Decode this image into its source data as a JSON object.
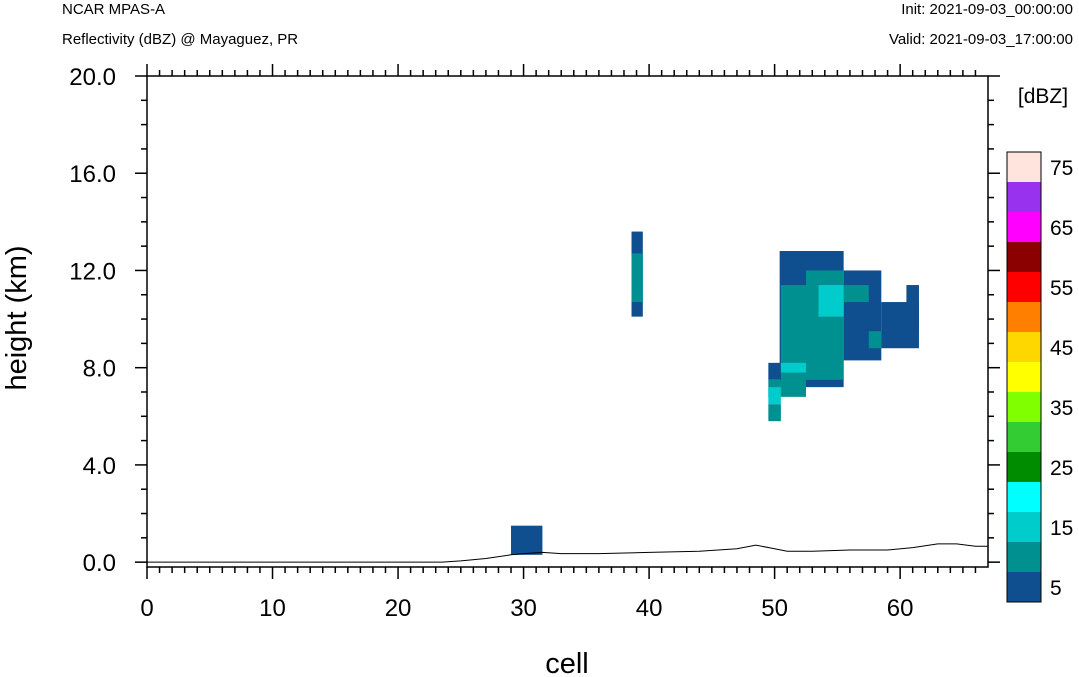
{
  "header": {
    "model": "NCAR MPAS-A",
    "field": "Reflectivity (dBZ) @ Mayaguez, PR",
    "init": "Init: 2021-09-03_00:00:00",
    "valid": "Valid: 2021-09-03_17:00:00"
  },
  "chart_data": {
    "type": "heatmap",
    "title": "Reflectivity (dBZ) @ Mayaguez, PR",
    "xlabel": "cell",
    "ylabel": "height (km)",
    "xlim": [
      0,
      67
    ],
    "ylim": [
      -0.2,
      20.0
    ],
    "xticks": [
      0,
      10,
      20,
      30,
      40,
      50,
      60
    ],
    "xtick_labels": [
      "0",
      "10",
      "20",
      "30",
      "40",
      "50",
      "60"
    ],
    "yticks": [
      0.0,
      4.0,
      8.0,
      12.0,
      16.0,
      20.0
    ],
    "ytick_labels": [
      "0.0",
      "4.0",
      "8.0",
      "12.0",
      "16.0",
      "20.0"
    ],
    "colorbar": {
      "unit_label": "[dBZ]",
      "levels": [
        5,
        10,
        15,
        20,
        25,
        30,
        35,
        40,
        45,
        50,
        55,
        60,
        65,
        70,
        75
      ],
      "colors": [
        "#0f4f8f",
        "#009090",
        "#00cccc",
        "#00ffff",
        "#008c00",
        "#33cc33",
        "#80ff00",
        "#ffff00",
        "#ffd700",
        "#ff8000",
        "#ff0000",
        "#8b0000",
        "#ff00ff",
        "#9932ee",
        "#ffe4de"
      ],
      "tick_labels": [
        "5",
        "15",
        "25",
        "35",
        "45",
        "55",
        "65",
        "75"
      ]
    },
    "cells": [
      {
        "x0": 29,
        "x1": 31.5,
        "y0": 0.3,
        "y1": 1.5,
        "dbz": 5
      },
      {
        "x0": 38.6,
        "x1": 39.5,
        "y0": 10.1,
        "y1": 13.6,
        "dbz": 5
      },
      {
        "x0": 38.6,
        "x1": 39.5,
        "y0": 10.7,
        "y1": 12.7,
        "dbz": 10
      },
      {
        "x0": 50.4,
        "x1": 55.5,
        "y0": 7.2,
        "y1": 12.8,
        "dbz": 5
      },
      {
        "x0": 55.5,
        "x1": 58.5,
        "y0": 8.3,
        "y1": 12.0,
        "dbz": 5
      },
      {
        "x0": 58.5,
        "x1": 61.5,
        "y0": 8.8,
        "y1": 10.7,
        "dbz": 5
      },
      {
        "x0": 60.5,
        "x1": 61.5,
        "y0": 9.5,
        "y1": 11.4,
        "dbz": 5
      },
      {
        "x0": 49.5,
        "x1": 50.5,
        "y0": 7.5,
        "y1": 8.2,
        "dbz": 5
      },
      {
        "x0": 50.5,
        "x1": 52.5,
        "y0": 7.2,
        "y1": 11.4,
        "dbz": 10
      },
      {
        "x0": 52.5,
        "x1": 55.5,
        "y0": 7.5,
        "y1": 12.0,
        "dbz": 10
      },
      {
        "x0": 55.5,
        "x1": 57.5,
        "y0": 10.7,
        "y1": 11.4,
        "dbz": 10
      },
      {
        "x0": 57.5,
        "x1": 58.5,
        "y0": 8.8,
        "y1": 9.5,
        "dbz": 10
      },
      {
        "x0": 49.5,
        "x1": 52.5,
        "y0": 6.8,
        "y1": 7.5,
        "dbz": 10
      },
      {
        "x0": 49.5,
        "x1": 50.5,
        "y0": 5.8,
        "y1": 6.5,
        "dbz": 10
      },
      {
        "x0": 53.5,
        "x1": 55.5,
        "y0": 10.1,
        "y1": 11.4,
        "dbz": 15
      },
      {
        "x0": 50.5,
        "x1": 52.5,
        "y0": 7.8,
        "y1": 8.2,
        "dbz": 15
      },
      {
        "x0": 49.5,
        "x1": 50.5,
        "y0": 6.5,
        "y1": 7.2,
        "dbz": 15
      }
    ],
    "terrain": {
      "x": [
        0,
        23.5,
        25,
        27,
        29,
        30,
        31.5,
        33,
        36,
        40,
        44,
        47,
        48.5,
        50,
        51,
        53,
        56,
        59,
        61,
        63,
        64.5,
        66,
        67
      ],
      "y": [
        0.0,
        0.0,
        0.05,
        0.15,
        0.3,
        0.35,
        0.4,
        0.35,
        0.35,
        0.4,
        0.45,
        0.55,
        0.7,
        0.55,
        0.45,
        0.45,
        0.5,
        0.5,
        0.6,
        0.75,
        0.75,
        0.65,
        0.65
      ]
    }
  }
}
